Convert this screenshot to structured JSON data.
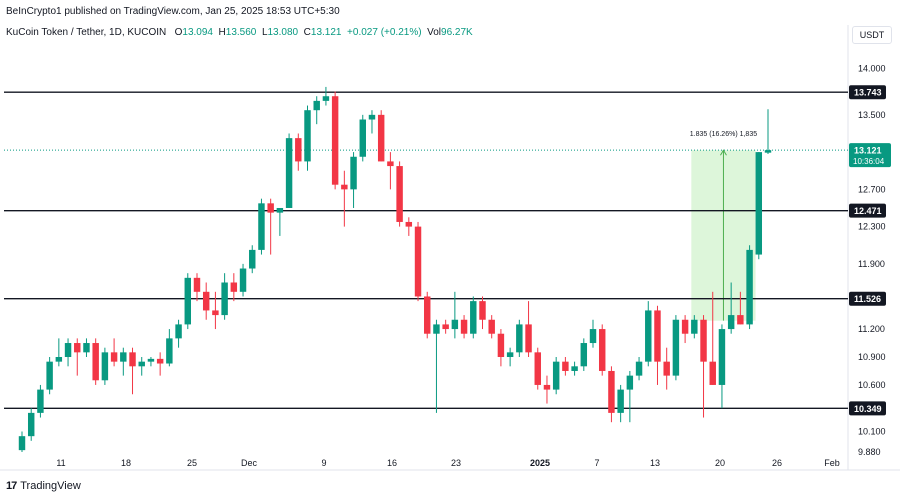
{
  "header": {
    "publisher_line": "BeInCrypto1 published on TradingView.com, Jan 25, 2025 18:53 UTC+5:30"
  },
  "legend": {
    "symbol": "KuCoin Token / Tether, 1D, KUCOIN",
    "open_label": "O",
    "open": "13.094",
    "high_label": "H",
    "high": "13.560",
    "low_label": "L",
    "low": "13.080",
    "close_label": "C",
    "close": "13.121",
    "change": "+0.027 (+0.21%)",
    "vol_label": "Vol",
    "vol": "96.27K"
  },
  "currency": "USDT",
  "footer": {
    "logo_text": "17",
    "brand": "TradingView"
  },
  "colors": {
    "up": "#089981",
    "down": "#f23645",
    "level": "#131722",
    "range_fill": "#d7f5d3",
    "range_line": "#4caf50",
    "price_line": "#089981"
  },
  "chart_data": {
    "type": "candlestick",
    "title": "KuCoin Token / Tether, 1D, KUCOIN",
    "ylim": [
      9.88,
      14.25
    ],
    "y_ticks": [
      "14.000",
      "13.500",
      "12.700",
      "12.300",
      "11.900",
      "11.200",
      "10.900",
      "10.600",
      "10.100",
      "9.880"
    ],
    "x_ticks": [
      "11",
      "18",
      "25",
      "Dec",
      "9",
      "16",
      "23",
      "2025",
      "7",
      "13",
      "20",
      "26",
      "Feb"
    ],
    "levels": [
      {
        "value": 13.743,
        "label": "13.743"
      },
      {
        "value": 12.471,
        "label": "12.471"
      },
      {
        "value": 11.526,
        "label": "11.526"
      },
      {
        "value": 10.349,
        "label": "10.349"
      }
    ],
    "last_price": {
      "value": 13.121,
      "label": "13.121",
      "countdown": "10:36:04"
    },
    "measure": {
      "from": 11.29,
      "to": 13.12,
      "start_index": 73,
      "end_index": 79,
      "label": "1.835 (16.26%) 1,835"
    },
    "candles": [
      {
        "o": 9.9,
        "h": 10.1,
        "l": 9.88,
        "c": 10.05
      },
      {
        "o": 10.05,
        "h": 10.35,
        "l": 10.0,
        "c": 10.3
      },
      {
        "o": 10.3,
        "h": 10.6,
        "l": 10.25,
        "c": 10.55
      },
      {
        "o": 10.55,
        "h": 10.9,
        "l": 10.5,
        "c": 10.85
      },
      {
        "o": 10.85,
        "h": 11.1,
        "l": 10.8,
        "c": 10.9
      },
      {
        "o": 10.9,
        "h": 11.1,
        "l": 10.8,
        "c": 11.05
      },
      {
        "o": 11.05,
        "h": 11.1,
        "l": 10.7,
        "c": 10.95
      },
      {
        "o": 10.95,
        "h": 11.1,
        "l": 10.9,
        "c": 11.05
      },
      {
        "o": 11.05,
        "h": 11.1,
        "l": 10.6,
        "c": 10.65
      },
      {
        "o": 10.65,
        "h": 11.0,
        "l": 10.6,
        "c": 10.95
      },
      {
        "o": 10.95,
        "h": 11.1,
        "l": 10.8,
        "c": 10.85
      },
      {
        "o": 10.85,
        "h": 11.0,
        "l": 10.7,
        "c": 10.95
      },
      {
        "o": 10.95,
        "h": 11.0,
        "l": 10.5,
        "c": 10.8
      },
      {
        "o": 10.8,
        "h": 10.9,
        "l": 10.7,
        "c": 10.85
      },
      {
        "o": 10.85,
        "h": 10.9,
        "l": 10.8,
        "c": 10.88
      },
      {
        "o": 10.88,
        "h": 10.95,
        "l": 10.7,
        "c": 10.83
      },
      {
        "o": 10.83,
        "h": 11.2,
        "l": 10.8,
        "c": 11.1
      },
      {
        "o": 11.1,
        "h": 11.3,
        "l": 11.0,
        "c": 11.25
      },
      {
        "o": 11.25,
        "h": 11.8,
        "l": 11.2,
        "c": 11.75
      },
      {
        "o": 11.75,
        "h": 11.8,
        "l": 11.5,
        "c": 11.6
      },
      {
        "o": 11.6,
        "h": 11.7,
        "l": 11.3,
        "c": 11.4
      },
      {
        "o": 11.4,
        "h": 11.6,
        "l": 11.2,
        "c": 11.35
      },
      {
        "o": 11.35,
        "h": 11.8,
        "l": 11.3,
        "c": 11.7
      },
      {
        "o": 11.7,
        "h": 11.8,
        "l": 11.5,
        "c": 11.6
      },
      {
        "o": 11.6,
        "h": 11.9,
        "l": 11.55,
        "c": 11.85
      },
      {
        "o": 11.85,
        "h": 12.1,
        "l": 11.8,
        "c": 12.05
      },
      {
        "o": 12.05,
        "h": 12.6,
        "l": 12.0,
        "c": 12.55
      },
      {
        "o": 12.55,
        "h": 12.6,
        "l": 12.0,
        "c": 12.45
      },
      {
        "o": 12.45,
        "h": 12.5,
        "l": 12.2,
        "c": 12.5
      },
      {
        "o": 12.5,
        "h": 13.3,
        "l": 12.5,
        "c": 13.25
      },
      {
        "o": 13.25,
        "h": 13.3,
        "l": 12.9,
        "c": 13.0
      },
      {
        "o": 13.0,
        "h": 13.6,
        "l": 12.9,
        "c": 13.55
      },
      {
        "o": 13.55,
        "h": 13.7,
        "l": 13.4,
        "c": 13.65
      },
      {
        "o": 13.65,
        "h": 13.8,
        "l": 13.6,
        "c": 13.7
      },
      {
        "o": 13.7,
        "h": 13.75,
        "l": 12.7,
        "c": 12.75
      },
      {
        "o": 12.75,
        "h": 12.9,
        "l": 12.3,
        "c": 12.7
      },
      {
        "o": 12.7,
        "h": 13.1,
        "l": 12.5,
        "c": 13.05
      },
      {
        "o": 13.05,
        "h": 13.5,
        "l": 13.0,
        "c": 13.45
      },
      {
        "o": 13.45,
        "h": 13.55,
        "l": 13.3,
        "c": 13.5
      },
      {
        "o": 13.5,
        "h": 13.55,
        "l": 13.0,
        "c": 13.0
      },
      {
        "o": 13.0,
        "h": 13.1,
        "l": 12.7,
        "c": 12.95
      },
      {
        "o": 12.95,
        "h": 13.0,
        "l": 12.3,
        "c": 12.35
      },
      {
        "o": 12.35,
        "h": 12.4,
        "l": 12.2,
        "c": 12.3
      },
      {
        "o": 12.3,
        "h": 12.35,
        "l": 11.5,
        "c": 11.55
      },
      {
        "o": 11.55,
        "h": 11.6,
        "l": 11.1,
        "c": 11.15
      },
      {
        "o": 11.15,
        "h": 11.3,
        "l": 10.3,
        "c": 11.25
      },
      {
        "o": 11.25,
        "h": 11.3,
        "l": 11.15,
        "c": 11.2
      },
      {
        "o": 11.2,
        "h": 11.6,
        "l": 11.1,
        "c": 11.3
      },
      {
        "o": 11.3,
        "h": 11.35,
        "l": 11.1,
        "c": 11.15
      },
      {
        "o": 11.15,
        "h": 11.55,
        "l": 11.1,
        "c": 11.5
      },
      {
        "o": 11.5,
        "h": 11.55,
        "l": 11.2,
        "c": 11.3
      },
      {
        "o": 11.3,
        "h": 11.35,
        "l": 11.1,
        "c": 11.15
      },
      {
        "o": 11.15,
        "h": 11.2,
        "l": 10.8,
        "c": 10.9
      },
      {
        "o": 10.9,
        "h": 11.0,
        "l": 10.8,
        "c": 10.95
      },
      {
        "o": 10.95,
        "h": 11.3,
        "l": 10.9,
        "c": 11.25
      },
      {
        "o": 11.25,
        "h": 11.5,
        "l": 10.9,
        "c": 10.95
      },
      {
        "o": 10.95,
        "h": 11.0,
        "l": 10.55,
        "c": 10.6
      },
      {
        "o": 10.6,
        "h": 10.7,
        "l": 10.4,
        "c": 10.55
      },
      {
        "o": 10.55,
        "h": 10.9,
        "l": 10.5,
        "c": 10.85
      },
      {
        "o": 10.85,
        "h": 10.9,
        "l": 10.7,
        "c": 10.75
      },
      {
        "o": 10.75,
        "h": 10.85,
        "l": 10.7,
        "c": 10.8
      },
      {
        "o": 10.8,
        "h": 11.1,
        "l": 10.75,
        "c": 11.05
      },
      {
        "o": 11.05,
        "h": 11.3,
        "l": 11.0,
        "c": 11.2
      },
      {
        "o": 11.2,
        "h": 11.25,
        "l": 10.7,
        "c": 10.75
      },
      {
        "o": 10.75,
        "h": 10.8,
        "l": 10.2,
        "c": 10.3
      },
      {
        "o": 10.3,
        "h": 10.6,
        "l": 10.2,
        "c": 10.55
      },
      {
        "o": 10.55,
        "h": 10.75,
        "l": 10.2,
        "c": 10.7
      },
      {
        "o": 10.7,
        "h": 10.9,
        "l": 10.65,
        "c": 10.85
      },
      {
        "o": 10.85,
        "h": 11.5,
        "l": 10.8,
        "c": 11.4
      },
      {
        "o": 11.4,
        "h": 11.45,
        "l": 10.6,
        "c": 10.85
      },
      {
        "o": 10.85,
        "h": 11.0,
        "l": 10.55,
        "c": 10.7
      },
      {
        "o": 10.7,
        "h": 11.35,
        "l": 10.65,
        "c": 11.3
      },
      {
        "o": 11.3,
        "h": 11.35,
        "l": 11.05,
        "c": 11.15
      },
      {
        "o": 11.15,
        "h": 11.35,
        "l": 11.1,
        "c": 11.3
      },
      {
        "o": 11.3,
        "h": 11.35,
        "l": 10.25,
        "c": 10.85
      },
      {
        "o": 10.85,
        "h": 11.6,
        "l": 10.6,
        "c": 10.6
      },
      {
        "o": 10.6,
        "h": 11.25,
        "l": 10.35,
        "c": 11.2
      },
      {
        "o": 11.2,
        "h": 11.7,
        "l": 11.15,
        "c": 11.35
      },
      {
        "o": 11.35,
        "h": 11.6,
        "l": 11.25,
        "c": 11.25
      },
      {
        "o": 11.25,
        "h": 12.1,
        "l": 11.2,
        "c": 12.05
      },
      {
        "o": 12.0,
        "h": 13.1,
        "l": 11.95,
        "c": 13.1
      },
      {
        "o": 13.094,
        "h": 13.56,
        "l": 13.08,
        "c": 13.121
      }
    ]
  }
}
